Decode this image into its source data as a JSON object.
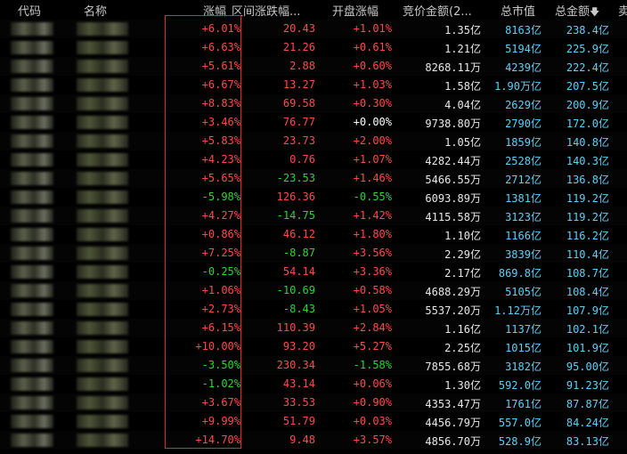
{
  "header": {
    "code": "代码",
    "name": "名称",
    "change_pct": "涨幅",
    "range_change": "区间涨跌幅...",
    "open_change": "开盘涨幅",
    "bid_amount": "竞价金额(2...",
    "market_cap": "总市值",
    "total_amount": "总金额",
    "sort_icon": "arrow-down",
    "last_col": "卖"
  },
  "colors": {
    "up": "#ff4a4a",
    "down": "#2fd23a",
    "flat": "#ffffff",
    "cyan": "#5fd0f5",
    "highlight": "#e02a2a"
  },
  "rows": [
    {
      "chg": "+6.01%",
      "chg_dir": "up",
      "range": "20.43",
      "range_dir": "up",
      "open": "+1.01%",
      "open_dir": "up",
      "bid": "1.35",
      "bid_unit": "亿",
      "mcap": "8163",
      "mcap_unit": "亿",
      "amt": "238.4",
      "amt_unit": "亿"
    },
    {
      "chg": "+6.63%",
      "chg_dir": "up",
      "range": "21.26",
      "range_dir": "up",
      "open": "+0.61%",
      "open_dir": "up",
      "bid": "1.21",
      "bid_unit": "亿",
      "mcap": "5194",
      "mcap_unit": "亿",
      "amt": "225.9",
      "amt_unit": "亿"
    },
    {
      "chg": "+5.61%",
      "chg_dir": "up",
      "range": "2.88",
      "range_dir": "up",
      "open": "+0.60%",
      "open_dir": "up",
      "bid": "8268.11",
      "bid_unit": "万",
      "mcap": "4239",
      "mcap_unit": "亿",
      "amt": "222.4",
      "amt_unit": "亿"
    },
    {
      "chg": "+6.67%",
      "chg_dir": "up",
      "range": "13.27",
      "range_dir": "up",
      "open": "+1.03%",
      "open_dir": "up",
      "bid": "1.58",
      "bid_unit": "亿",
      "mcap": "1.90",
      "mcap_unit": "万亿",
      "amt": "207.5",
      "amt_unit": "亿"
    },
    {
      "chg": "+8.83%",
      "chg_dir": "up",
      "range": "69.58",
      "range_dir": "up",
      "open": "+0.30%",
      "open_dir": "up",
      "bid": "4.04",
      "bid_unit": "亿",
      "mcap": "2629",
      "mcap_unit": "亿",
      "amt": "200.9",
      "amt_unit": "亿"
    },
    {
      "chg": "+3.46%",
      "chg_dir": "up",
      "range": "76.77",
      "range_dir": "up",
      "open": "+0.00%",
      "open_dir": "flat",
      "bid": "9738.80",
      "bid_unit": "万",
      "mcap": "2790",
      "mcap_unit": "亿",
      "amt": "172.0",
      "amt_unit": "亿"
    },
    {
      "chg": "+5.83%",
      "chg_dir": "up",
      "range": "23.73",
      "range_dir": "up",
      "open": "+2.00%",
      "open_dir": "up",
      "bid": "1.05",
      "bid_unit": "亿",
      "mcap": "1859",
      "mcap_unit": "亿",
      "amt": "140.8",
      "amt_unit": "亿"
    },
    {
      "chg": "+4.23%",
      "chg_dir": "up",
      "range": "0.76",
      "range_dir": "up",
      "open": "+1.07%",
      "open_dir": "up",
      "bid": "4282.44",
      "bid_unit": "万",
      "mcap": "2528",
      "mcap_unit": "亿",
      "amt": "140.3",
      "amt_unit": "亿"
    },
    {
      "chg": "+5.65%",
      "chg_dir": "up",
      "range": "-23.53",
      "range_dir": "down",
      "open": "+1.46%",
      "open_dir": "up",
      "bid": "5466.55",
      "bid_unit": "万",
      "mcap": "2712",
      "mcap_unit": "亿",
      "amt": "136.8",
      "amt_unit": "亿"
    },
    {
      "chg": "-5.98%",
      "chg_dir": "down",
      "range": "126.36",
      "range_dir": "up",
      "open": "-0.55%",
      "open_dir": "down",
      "bid": "6093.89",
      "bid_unit": "万",
      "mcap": "1381",
      "mcap_unit": "亿",
      "amt": "119.2",
      "amt_unit": "亿"
    },
    {
      "chg": "+4.27%",
      "chg_dir": "up",
      "range": "-14.75",
      "range_dir": "down",
      "open": "+1.42%",
      "open_dir": "up",
      "bid": "4115.58",
      "bid_unit": "万",
      "mcap": "3123",
      "mcap_unit": "亿",
      "amt": "119.2",
      "amt_unit": "亿"
    },
    {
      "chg": "+0.86%",
      "chg_dir": "up",
      "range": "46.12",
      "range_dir": "up",
      "open": "+1.80%",
      "open_dir": "up",
      "bid": "1.10",
      "bid_unit": "亿",
      "mcap": "1166",
      "mcap_unit": "亿",
      "amt": "116.2",
      "amt_unit": "亿"
    },
    {
      "chg": "+7.25%",
      "chg_dir": "up",
      "range": "-8.87",
      "range_dir": "down",
      "open": "+3.56%",
      "open_dir": "up",
      "bid": "2.29",
      "bid_unit": "亿",
      "mcap": "3839",
      "mcap_unit": "亿",
      "amt": "110.4",
      "amt_unit": "亿"
    },
    {
      "chg": "-0.25%",
      "chg_dir": "down",
      "range": "54.14",
      "range_dir": "up",
      "open": "+3.36%",
      "open_dir": "up",
      "bid": "2.17",
      "bid_unit": "亿",
      "mcap": "869.8",
      "mcap_unit": "亿",
      "amt": "108.7",
      "amt_unit": "亿"
    },
    {
      "chg": "+1.06%",
      "chg_dir": "up",
      "range": "-10.69",
      "range_dir": "down",
      "open": "+0.58%",
      "open_dir": "up",
      "bid": "4688.29",
      "bid_unit": "万",
      "mcap": "5105",
      "mcap_unit": "亿",
      "amt": "108.4",
      "amt_unit": "亿"
    },
    {
      "chg": "+2.73%",
      "chg_dir": "up",
      "range": "-8.43",
      "range_dir": "down",
      "open": "+1.05%",
      "open_dir": "up",
      "bid": "5537.20",
      "bid_unit": "万",
      "mcap": "1.12",
      "mcap_unit": "万亿",
      "amt": "107.9",
      "amt_unit": "亿"
    },
    {
      "chg": "+6.15%",
      "chg_dir": "up",
      "range": "110.39",
      "range_dir": "up",
      "open": "+2.84%",
      "open_dir": "up",
      "bid": "1.16",
      "bid_unit": "亿",
      "mcap": "1137",
      "mcap_unit": "亿",
      "amt": "102.1",
      "amt_unit": "亿"
    },
    {
      "chg": "+10.00%",
      "chg_dir": "up",
      "range": "93.20",
      "range_dir": "up",
      "open": "+5.27%",
      "open_dir": "up",
      "bid": "2.25",
      "bid_unit": "亿",
      "mcap": "1015",
      "mcap_unit": "亿",
      "amt": "101.9",
      "amt_unit": "亿"
    },
    {
      "chg": "-3.50%",
      "chg_dir": "down",
      "range": "230.34",
      "range_dir": "up",
      "open": "-1.58%",
      "open_dir": "down",
      "bid": "7855.68",
      "bid_unit": "万",
      "mcap": "3182",
      "mcap_unit": "亿",
      "amt": "95.00",
      "amt_unit": "亿"
    },
    {
      "chg": "-1.02%",
      "chg_dir": "down",
      "range": "43.14",
      "range_dir": "up",
      "open": "+0.06%",
      "open_dir": "up",
      "bid": "1.30",
      "bid_unit": "亿",
      "mcap": "592.0",
      "mcap_unit": "亿",
      "amt": "91.23",
      "amt_unit": "亿"
    },
    {
      "chg": "+3.67%",
      "chg_dir": "up",
      "range": "33.53",
      "range_dir": "up",
      "open": "+0.90%",
      "open_dir": "up",
      "bid": "4353.47",
      "bid_unit": "万",
      "mcap": "1761",
      "mcap_unit": "亿",
      "amt": "87.87",
      "amt_unit": "亿"
    },
    {
      "chg": "+9.99%",
      "chg_dir": "up",
      "range": "51.79",
      "range_dir": "up",
      "open": "+0.03%",
      "open_dir": "up",
      "bid": "4456.79",
      "bid_unit": "万",
      "mcap": "557.0",
      "mcap_unit": "亿",
      "amt": "84.24",
      "amt_unit": "亿"
    },
    {
      "chg": "+14.70%",
      "chg_dir": "up",
      "range": "9.48",
      "range_dir": "up",
      "open": "+3.57%",
      "open_dir": "up",
      "bid": "4856.70",
      "bid_unit": "万",
      "mcap": "528.9",
      "mcap_unit": "亿",
      "amt": "83.13",
      "amt_unit": "亿"
    }
  ]
}
